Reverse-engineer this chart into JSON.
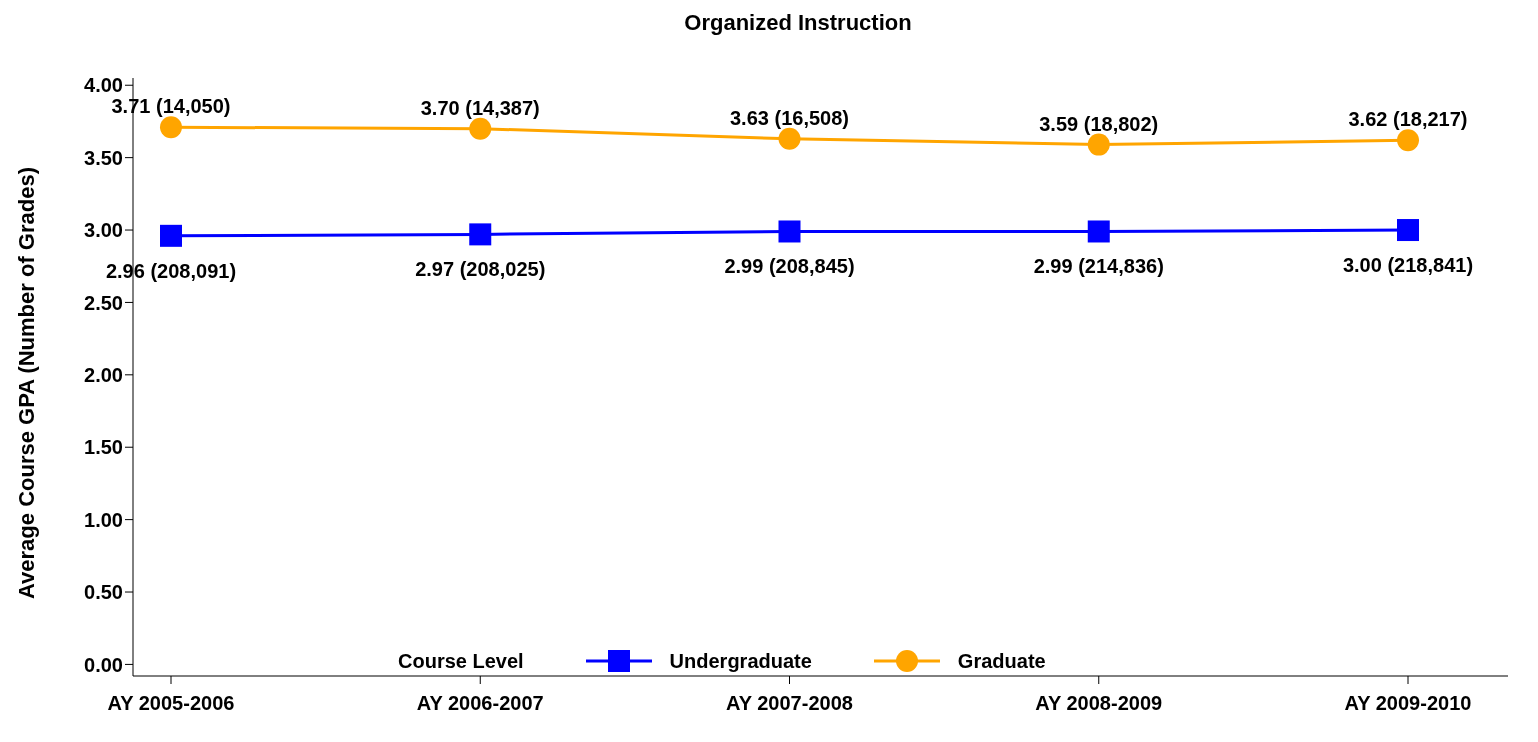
{
  "chart_data": {
    "type": "line",
    "title": "Organized Instruction",
    "ylabel": "Average Course GPA (Number of Grades)",
    "legend_title": "Course Level",
    "categories": [
      "AY 2005-2006",
      "AY 2006-2007",
      "AY 2007-2008",
      "AY 2008-2009",
      "AY 2009-2010"
    ],
    "series": [
      {
        "name": "Undergraduate",
        "color": "#0000ff",
        "marker": "square",
        "values": [
          2.96,
          2.97,
          2.99,
          2.99,
          3.0
        ],
        "value_labels": [
          "2.96 (208,091)",
          "2.97 (208,025)",
          "2.99 (208,845)",
          "2.99 (214,836)",
          "3.00 (218,841)"
        ]
      },
      {
        "name": "Graduate",
        "color": "#ffa500",
        "marker": "circle",
        "values": [
          3.71,
          3.7,
          3.63,
          3.59,
          3.62
        ],
        "value_labels": [
          "3.71 (14,050)",
          "3.70 (14,387)",
          "3.63 (16,508)",
          "3.59 (18,802)",
          "3.62 (18,217)"
        ]
      }
    ],
    "ylim": [
      -0.08,
      4.05
    ],
    "yticks": [
      {
        "value": 0,
        "label": "0.00"
      },
      {
        "value": 0.5,
        "label": "0.50"
      },
      {
        "value": 1,
        "label": "1.00"
      },
      {
        "value": 1.5,
        "label": "1.50"
      },
      {
        "value": 2,
        "label": "2.00"
      },
      {
        "value": 2.5,
        "label": "2.50"
      },
      {
        "value": 3,
        "label": "3.00"
      },
      {
        "value": 3.5,
        "label": "3.50"
      },
      {
        "value": 4,
        "label": "4.00"
      }
    ],
    "grid": false,
    "legend": "bottom",
    "line_style": "solid"
  }
}
